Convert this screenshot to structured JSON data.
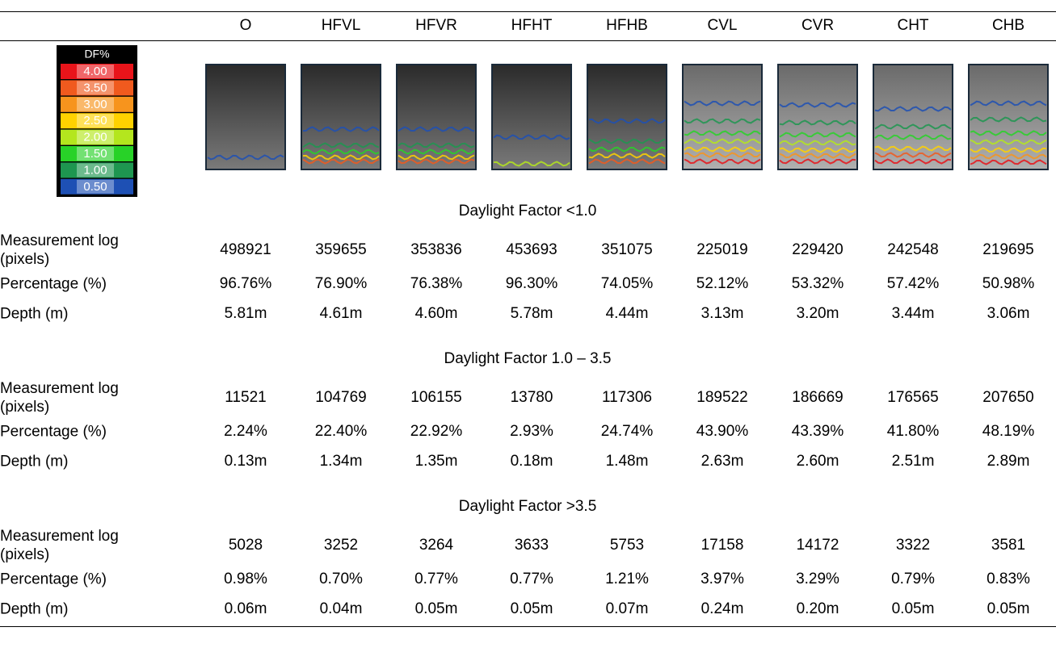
{
  "table": {
    "columns": [
      "O",
      "HFVL",
      "HFVR",
      "HFHT",
      "HFHB",
      "CVL",
      "CVR",
      "CHT",
      "CHB"
    ],
    "legend": {
      "title": "DF%",
      "levels": [
        {
          "label": "4.00",
          "color": "#e8141a"
        },
        {
          "label": "3.50",
          "color": "#f05a1e"
        },
        {
          "label": "3.00",
          "color": "#f7941d"
        },
        {
          "label": "2.50",
          "color": "#ffd200"
        },
        {
          "label": "2.00",
          "color": "#b4e61e"
        },
        {
          "label": "1.50",
          "color": "#28d228"
        },
        {
          "label": "1.00",
          "color": "#1e9650"
        },
        {
          "label": "0.50",
          "color": "#1e50b4"
        }
      ]
    },
    "sections": [
      {
        "title": "Daylight Factor <1.0",
        "rows": [
          {
            "label": "Measurement log (pixels)",
            "cells": [
              "498921",
              "359655",
              "353836",
              "453693",
              "351075",
              "225019",
              "229420",
              "242548",
              "219695"
            ]
          },
          {
            "label": "Percentage (%)",
            "cells": [
              "96.76%",
              "76.90%",
              "76.38%",
              "96.30%",
              "74.05%",
              "52.12%",
              "53.32%",
              "57.42%",
              "50.98%"
            ]
          },
          {
            "label": "Depth (m)",
            "cells": [
              "5.81m",
              "4.61m",
              "4.60m",
              "5.78m",
              "4.44m",
              "3.13m",
              "3.20m",
              "3.44m",
              "3.06m"
            ]
          }
        ]
      },
      {
        "title": "Daylight Factor 1.0 – 3.5",
        "rows": [
          {
            "label": "Measurement log (pixels)",
            "cells": [
              "11521",
              "104769",
              "106155",
              "13780",
              "117306",
              "189522",
              "186669",
              "176565",
              "207650"
            ]
          },
          {
            "label": "Percentage (%)",
            "cells": [
              "2.24%",
              "22.40%",
              "22.92%",
              "2.93%",
              "24.74%",
              "43.90%",
              "43.39%",
              "41.80%",
              "48.19%"
            ]
          },
          {
            "label": "Depth (m)",
            "cells": [
              "0.13m",
              "1.34m",
              "1.35m",
              "0.18m",
              "1.48m",
              "2.63m",
              "2.60m",
              "2.51m",
              "2.89m"
            ]
          }
        ]
      },
      {
        "title": "Daylight Factor >3.5",
        "rows": [
          {
            "label": "Measurement log (pixels)",
            "cells": [
              "5028",
              "3252",
              "3264",
              "3633",
              "5753",
              "17158",
              "14172",
              "3322",
              "3581"
            ]
          },
          {
            "label": "Percentage (%)",
            "cells": [
              "0.98%",
              "0.70%",
              "0.77%",
              "0.77%",
              "1.21%",
              "3.97%",
              "3.29%",
              "0.79%",
              "0.83%"
            ]
          },
          {
            "label": "Depth (m)",
            "cells": [
              "0.06m",
              "0.04m",
              "0.05m",
              "0.05m",
              "0.07m",
              "0.24m",
              "0.20m",
              "0.05m",
              "0.05m"
            ]
          }
        ]
      }
    ]
  }
}
